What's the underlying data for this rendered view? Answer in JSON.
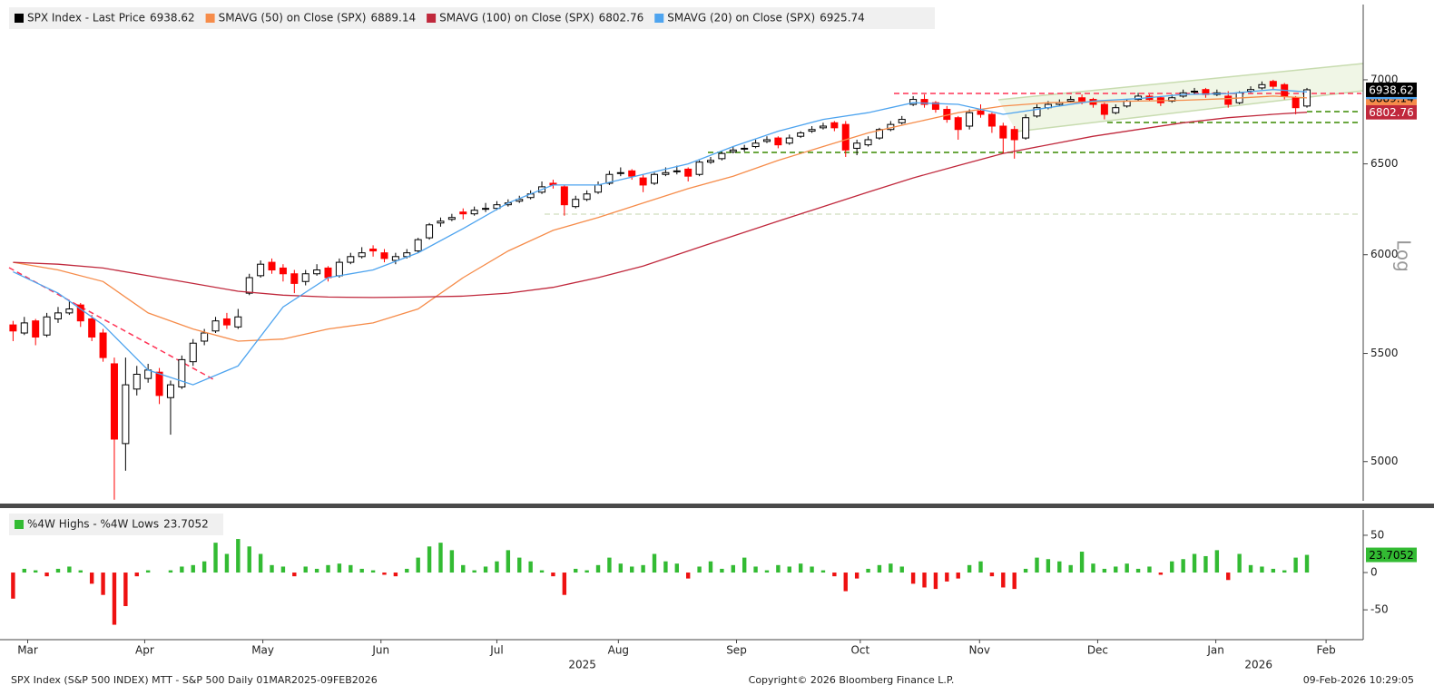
{
  "chart_data": [
    {
      "type": "candlestick",
      "scale": "log",
      "ytitle": "Log",
      "xlim": [
        -1,
        120
      ],
      "ylim": [
        4830,
        7480
      ],
      "yticks": [
        5000,
        5500,
        6000,
        6500,
        7000
      ],
      "series": [
        {
          "name": "SPX Index - Last Price",
          "color": "#000000",
          "down_color": "#ff0000",
          "last": 6938.62,
          "ohlc": [
            [
              5640,
              5660,
              5560,
              5610
            ],
            [
              5600,
              5680,
              5590,
              5650
            ],
            [
              5660,
              5670,
              5540,
              5580
            ],
            [
              5590,
              5700,
              5580,
              5680
            ],
            [
              5670,
              5730,
              5650,
              5700
            ],
            [
              5700,
              5760,
              5690,
              5720
            ],
            [
              5740,
              5750,
              5630,
              5660
            ],
            [
              5670,
              5690,
              5560,
              5580
            ],
            [
              5600,
              5620,
              5460,
              5480
            ],
            [
              5450,
              5480,
              4835,
              5100
            ],
            [
              5080,
              5480,
              4960,
              5350
            ],
            [
              5330,
              5440,
              5300,
              5400
            ],
            [
              5380,
              5450,
              5360,
              5420
            ],
            [
              5410,
              5430,
              5260,
              5300
            ],
            [
              5290,
              5370,
              5120,
              5350
            ],
            [
              5340,
              5490,
              5330,
              5470
            ],
            [
              5460,
              5570,
              5440,
              5550
            ],
            [
              5560,
              5620,
              5540,
              5600
            ],
            [
              5610,
              5680,
              5600,
              5660
            ],
            [
              5670,
              5700,
              5620,
              5640
            ],
            [
              5630,
              5720,
              5620,
              5680
            ],
            [
              5800,
              5900,
              5790,
              5880
            ],
            [
              5890,
              5970,
              5880,
              5950
            ],
            [
              5960,
              5980,
              5900,
              5920
            ],
            [
              5930,
              5950,
              5860,
              5900
            ],
            [
              5900,
              5920,
              5800,
              5850
            ],
            [
              5860,
              5920,
              5840,
              5900
            ],
            [
              5900,
              5950,
              5890,
              5920
            ],
            [
              5930,
              5940,
              5860,
              5880
            ],
            [
              5890,
              5980,
              5880,
              5960
            ],
            [
              5960,
              6010,
              5950,
              5990
            ],
            [
              5990,
              6040,
              5980,
              6010
            ],
            [
              6030,
              6050,
              5990,
              6020
            ],
            [
              6010,
              6030,
              5960,
              5980
            ],
            [
              5970,
              6010,
              5950,
              5990
            ],
            [
              5990,
              6030,
              5980,
              6010
            ],
            [
              6020,
              6090,
              6010,
              6080
            ],
            [
              6090,
              6170,
              6080,
              6160
            ],
            [
              6170,
              6200,
              6150,
              6180
            ],
            [
              6190,
              6220,
              6180,
              6200
            ],
            [
              6230,
              6250,
              6190,
              6220
            ],
            [
              6220,
              6260,
              6210,
              6240
            ],
            [
              6250,
              6280,
              6230,
              6250
            ],
            [
              6250,
              6290,
              6240,
              6270
            ],
            [
              6270,
              6300,
              6260,
              6280
            ],
            [
              6290,
              6320,
              6280,
              6300
            ],
            [
              6310,
              6350,
              6300,
              6330
            ],
            [
              6340,
              6400,
              6330,
              6370
            ],
            [
              6390,
              6410,
              6360,
              6380
            ],
            [
              6370,
              6380,
              6210,
              6270
            ],
            [
              6260,
              6320,
              6250,
              6300
            ],
            [
              6300,
              6350,
              6290,
              6330
            ],
            [
              6340,
              6400,
              6330,
              6380
            ],
            [
              6390,
              6460,
              6380,
              6440
            ],
            [
              6450,
              6480,
              6430,
              6450
            ],
            [
              6460,
              6470,
              6410,
              6430
            ],
            [
              6420,
              6440,
              6340,
              6380
            ],
            [
              6390,
              6450,
              6380,
              6440
            ],
            [
              6440,
              6480,
              6430,
              6450
            ],
            [
              6460,
              6490,
              6440,
              6460
            ],
            [
              6470,
              6480,
              6400,
              6430
            ],
            [
              6440,
              6520,
              6430,
              6510
            ],
            [
              6510,
              6540,
              6500,
              6520
            ],
            [
              6530,
              6570,
              6520,
              6560
            ],
            [
              6570,
              6600,
              6560,
              6580
            ],
            [
              6590,
              6610,
              6570,
              6590
            ],
            [
              6600,
              6640,
              6590,
              6620
            ],
            [
              6630,
              6660,
              6620,
              6640
            ],
            [
              6650,
              6660,
              6590,
              6610
            ],
            [
              6620,
              6670,
              6610,
              6650
            ],
            [
              6660,
              6690,
              6650,
              6680
            ],
            [
              6690,
              6720,
              6680,
              6700
            ],
            [
              6710,
              6740,
              6700,
              6720
            ],
            [
              6740,
              6750,
              6690,
              6710
            ],
            [
              6730,
              6750,
              6540,
              6580
            ],
            [
              6590,
              6640,
              6550,
              6620
            ],
            [
              6610,
              6660,
              6600,
              6640
            ],
            [
              6650,
              6710,
              6640,
              6700
            ],
            [
              6700,
              6750,
              6690,
              6730
            ],
            [
              6740,
              6780,
              6730,
              6760
            ],
            [
              6850,
              6900,
              6840,
              6880
            ],
            [
              6880,
              6910,
              6830,
              6850
            ],
            [
              6860,
              6870,
              6800,
              6820
            ],
            [
              6820,
              6840,
              6740,
              6760
            ],
            [
              6770,
              6780,
              6640,
              6700
            ],
            [
              6720,
              6820,
              6700,
              6800
            ],
            [
              6810,
              6850,
              6770,
              6790
            ],
            [
              6790,
              6800,
              6680,
              6720
            ],
            [
              6720,
              6740,
              6560,
              6650
            ],
            [
              6700,
              6720,
              6530,
              6640
            ],
            [
              6650,
              6790,
              6640,
              6770
            ],
            [
              6780,
              6850,
              6770,
              6830
            ],
            [
              6830,
              6870,
              6820,
              6850
            ],
            [
              6850,
              6880,
              6840,
              6860
            ],
            [
              6870,
              6900,
              6860,
              6880
            ],
            [
              6890,
              6910,
              6850,
              6870
            ],
            [
              6880,
              6890,
              6830,
              6850
            ],
            [
              6850,
              6860,
              6760,
              6790
            ],
            [
              6800,
              6850,
              6790,
              6830
            ],
            [
              6840,
              6880,
              6830,
              6870
            ],
            [
              6880,
              6920,
              6870,
              6900
            ],
            [
              6900,
              6910,
              6870,
              6880
            ],
            [
              6890,
              6900,
              6840,
              6860
            ],
            [
              6870,
              6910,
              6860,
              6890
            ],
            [
              6900,
              6940,
              6890,
              6920
            ],
            [
              6930,
              6950,
              6910,
              6930
            ],
            [
              6940,
              6950,
              6890,
              6910
            ],
            [
              6910,
              6940,
              6900,
              6920
            ],
            [
              6900,
              6930,
              6830,
              6850
            ],
            [
              6860,
              6930,
              6850,
              6920
            ],
            [
              6930,
              6960,
              6920,
              6940
            ],
            [
              6950,
              6990,
              6940,
              6970
            ],
            [
              6990,
              7000,
              6940,
              6960
            ],
            [
              6970,
              6980,
              6880,
              6900
            ],
            [
              6890,
              6900,
              6790,
              6830
            ],
            [
              6840,
              6950,
              6830,
              6938.62
            ]
          ]
        },
        {
          "name": "SMAVG (50)  on Close (SPX)",
          "color": "#f68c4a",
          "last": 6889.14,
          "x": [
            0,
            4,
            8,
            12,
            16,
            20,
            24,
            28,
            32,
            36,
            40,
            44,
            48,
            52,
            56,
            60,
            64,
            68,
            72,
            76,
            80,
            84,
            88,
            92,
            96,
            100,
            104,
            108,
            112,
            115
          ],
          "values": [
            5960,
            5920,
            5860,
            5700,
            5620,
            5560,
            5570,
            5620,
            5650,
            5720,
            5880,
            6020,
            6130,
            6200,
            6280,
            6360,
            6430,
            6520,
            6600,
            6680,
            6740,
            6800,
            6840,
            6860,
            6865,
            6870,
            6875,
            6885,
            6900,
            6889.14
          ]
        },
        {
          "name": "SMAVG (100)  on Close (SPX)",
          "color": "#c0283c",
          "last": 6802.76,
          "x": [
            0,
            4,
            8,
            12,
            16,
            20,
            24,
            28,
            32,
            36,
            40,
            44,
            48,
            52,
            56,
            60,
            64,
            68,
            72,
            76,
            80,
            84,
            88,
            92,
            96,
            100,
            104,
            108,
            112,
            115
          ],
          "values": [
            5960,
            5950,
            5930,
            5890,
            5850,
            5810,
            5790,
            5780,
            5778,
            5780,
            5785,
            5800,
            5830,
            5880,
            5940,
            6020,
            6100,
            6180,
            6260,
            6340,
            6420,
            6490,
            6560,
            6610,
            6660,
            6700,
            6740,
            6770,
            6790,
            6802.76
          ]
        },
        {
          "name": "SMAVG (20)  on Close (SPX)",
          "color": "#4ea4ef",
          "last": 6925.74,
          "x": [
            0,
            4,
            8,
            12,
            16,
            20,
            24,
            28,
            32,
            36,
            40,
            44,
            48,
            52,
            56,
            60,
            64,
            68,
            72,
            76,
            80,
            84,
            88,
            92,
            96,
            100,
            104,
            108,
            112,
            115
          ],
          "values": [
            5910,
            5800,
            5640,
            5420,
            5350,
            5440,
            5730,
            5880,
            5920,
            6010,
            6140,
            6280,
            6380,
            6380,
            6440,
            6500,
            6600,
            6690,
            6760,
            6800,
            6860,
            6850,
            6790,
            6830,
            6870,
            6885,
            6910,
            6915,
            6940,
            6925.74
          ]
        }
      ]
    },
    {
      "type": "bar",
      "name": "%4W Highs - %4W Lows",
      "color": "#33bb33",
      "down_color": "#ee1111",
      "last": 23.7052,
      "xlim": [
        -1,
        120
      ],
      "ylim": [
        -90,
        84
      ],
      "yticks": [
        -50,
        0,
        50
      ],
      "values": [
        -35,
        5,
        3,
        -5,
        5,
        8,
        3,
        -15,
        -30,
        -70,
        -45,
        -5,
        3,
        0,
        3,
        8,
        10,
        15,
        40,
        25,
        45,
        35,
        25,
        10,
        8,
        -5,
        8,
        5,
        10,
        12,
        10,
        5,
        3,
        -3,
        -5,
        5,
        20,
        35,
        40,
        30,
        10,
        3,
        8,
        15,
        30,
        20,
        15,
        3,
        -5,
        -30,
        5,
        3,
        10,
        20,
        12,
        8,
        10,
        25,
        15,
        12,
        -8,
        8,
        15,
        5,
        10,
        20,
        8,
        3,
        10,
        8,
        12,
        8,
        3,
        -5,
        -25,
        -8,
        5,
        10,
        12,
        8,
        -15,
        -20,
        -22,
        -12,
        -8,
        10,
        15,
        -5,
        -20,
        -22,
        5,
        20,
        18,
        15,
        10,
        28,
        12,
        5,
        8,
        12,
        5,
        8,
        -3,
        15,
        18,
        25,
        22,
        30,
        -10,
        25,
        10,
        8,
        5,
        3,
        20,
        23.7052
      ],
      "xticks": [
        {
          "value": 1.3,
          "label": "Mar"
        },
        {
          "value": 11.7,
          "label": "Apr"
        },
        {
          "value": 22.2,
          "label": "May"
        },
        {
          "value": 32.7,
          "label": "Jun"
        },
        {
          "value": 43.0,
          "label": "Jul"
        },
        {
          "value": 53.8,
          "label": "Aug"
        },
        {
          "value": 64.3,
          "label": "Sep"
        },
        {
          "value": 75.3,
          "label": "Oct"
        },
        {
          "value": 85.9,
          "label": "Nov"
        },
        {
          "value": 96.4,
          "label": "Dec"
        },
        {
          "value": 106.9,
          "label": "Jan"
        },
        {
          "value": 116.7,
          "label": "Feb"
        }
      ],
      "xticks2": [
        {
          "value": 50.6,
          "label": "2025"
        },
        {
          "value": 110.7,
          "label": "2026"
        }
      ]
    }
  ],
  "footer": {
    "left": "SPX Index (S&P 500 INDEX) MTT - S&P 500 Daily 01MAR2025-09FEB2026",
    "center": "Copyright© 2026 Bloomberg Finance L.P.",
    "right": "09-Feb-2026 10:29:05"
  }
}
